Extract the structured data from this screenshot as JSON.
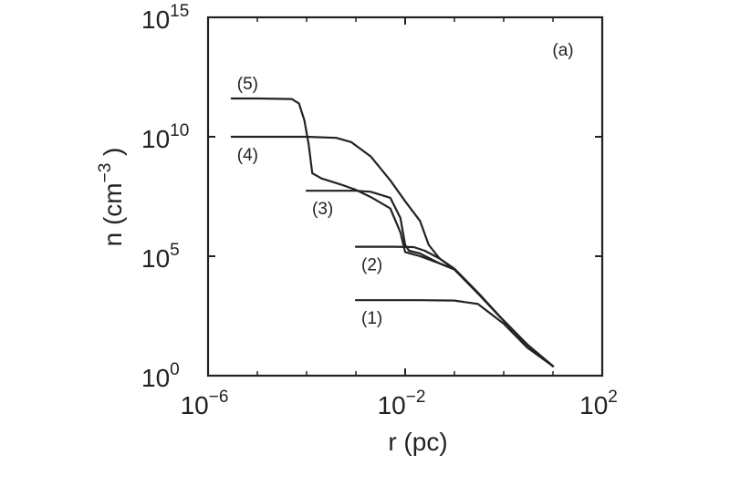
{
  "chart_data": {
    "type": "line",
    "panel_label": "(a)",
    "xlabel": "r (pc)",
    "ylabel_base": "n (cm",
    "ylabel_exp": "−3",
    "ylabel_close": ")",
    "x_scale": "log",
    "y_scale": "log",
    "xlim": [
      1e-06,
      100
    ],
    "ylim": [
      1,
      1000000000000000.0
    ],
    "x_ticks": [
      {
        "value": 1e-06,
        "base": "10",
        "exp": "−6"
      },
      {
        "value": 0.01,
        "base": "10",
        "exp": "−2"
      },
      {
        "value": 100,
        "base": "10",
        "exp": "2"
      }
    ],
    "y_ticks": [
      {
        "value": 1,
        "base": "10",
        "exp": "0"
      },
      {
        "value": 100000,
        "base": "10",
        "exp": "5"
      },
      {
        "value": 10000000000.0,
        "base": "10",
        "exp": "10"
      },
      {
        "value": 1000000000000000.0,
        "base": "10",
        "exp": "15"
      }
    ],
    "grid": false,
    "series": [
      {
        "name": "(1)",
        "x": [
          0.001,
          0.005,
          0.02,
          0.1,
          0.3,
          1,
          3,
          10
        ],
        "y": [
          1450,
          1450,
          1450,
          1400,
          1000,
          150,
          15,
          2.5
        ]
      },
      {
        "name": "(2)",
        "x": [
          0.001,
          0.006,
          0.015,
          0.025,
          0.05,
          0.1,
          0.3,
          1,
          3,
          10
        ],
        "y": [
          250000,
          250000,
          240000,
          170000,
          80000,
          30000,
          3000,
          200,
          20,
          2.5
        ]
      },
      {
        "name": "(3)",
        "x": [
          0.0001,
          0.001,
          0.002,
          0.005,
          0.008,
          0.01,
          0.012,
          0.02,
          0.05,
          0.1,
          0.3,
          1,
          3,
          10
        ],
        "y": [
          55000000.0,
          55000000.0,
          50000000.0,
          28000000.0,
          4000000.0,
          300000.0,
          170000.0,
          130000.0,
          50000.0,
          28000.0,
          2800,
          200,
          20,
          2.5
        ]
      },
      {
        "name": "(4)",
        "x": [
          3e-06,
          0.0001,
          0.0004,
          0.0008,
          0.002,
          0.005,
          0.01,
          0.02,
          0.03,
          0.05,
          0.1,
          0.3,
          1,
          3,
          10
        ],
        "y": [
          10000000000.0,
          10000000000.0,
          9000000000.0,
          6000000000.0,
          1500000000.0,
          150000000.0,
          20000000.0,
          3000000.0,
          300000.0,
          80000.0,
          28000.0,
          2800,
          200,
          20,
          2.5
        ]
      },
      {
        "name": "(5)",
        "x": [
          3e-06,
          1e-05,
          5e-05,
          7e-05,
          9e-05,
          0.00011,
          0.00013,
          0.0002,
          0.0005,
          0.001,
          0.002,
          0.005,
          0.008,
          0.01,
          0.02,
          0.05,
          0.1,
          0.3,
          1,
          3,
          10
        ],
        "y": [
          400000000000.0,
          400000000000.0,
          380000000000.0,
          250000000000.0,
          50000000000.0,
          5000000000.0,
          300000000.0,
          180000000.0,
          100000000.0,
          60000000.0,
          30000000.0,
          10000000.0,
          1000000.0,
          150000.0,
          100000.0,
          50000.0,
          28000.0,
          2800,
          200,
          20,
          2.5
        ]
      }
    ]
  }
}
